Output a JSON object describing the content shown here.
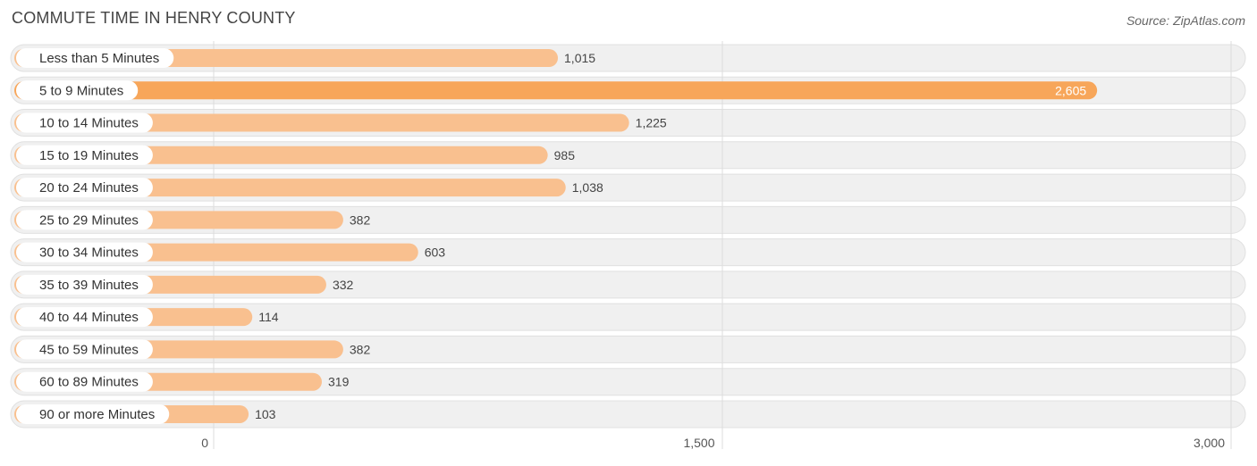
{
  "header": {
    "title": "COMMUTE TIME IN HENRY COUNTY",
    "source": "Source: ZipAtlas.com"
  },
  "colors": {
    "bar": "#f9c08f",
    "bar_highlight": "#f7a65a",
    "row_bg": "#f0f0f0",
    "row_border": "#e0e0e0",
    "grid": "#dddddd"
  },
  "chart_data": {
    "type": "bar",
    "orientation": "horizontal",
    "title": "COMMUTE TIME IN HENRY COUNTY",
    "categories": [
      "Less than 5 Minutes",
      "5 to 9 Minutes",
      "10 to 14 Minutes",
      "15 to 19 Minutes",
      "20 to 24 Minutes",
      "25 to 29 Minutes",
      "30 to 34 Minutes",
      "35 to 39 Minutes",
      "40 to 44 Minutes",
      "45 to 59 Minutes",
      "60 to 89 Minutes",
      "90 or more Minutes"
    ],
    "values": [
      1015,
      2605,
      1225,
      985,
      1038,
      382,
      603,
      332,
      114,
      382,
      319,
      103
    ],
    "value_labels": [
      "1,015",
      "2,605",
      "1,225",
      "985",
      "1,038",
      "382",
      "603",
      "332",
      "114",
      "382",
      "319",
      "103"
    ],
    "xlim": [
      0,
      3000
    ],
    "xticks": [
      0,
      1500,
      3000
    ],
    "xtick_labels": [
      "0",
      "1,500",
      "3,000"
    ],
    "highlight_index": 1,
    "grid": true
  }
}
